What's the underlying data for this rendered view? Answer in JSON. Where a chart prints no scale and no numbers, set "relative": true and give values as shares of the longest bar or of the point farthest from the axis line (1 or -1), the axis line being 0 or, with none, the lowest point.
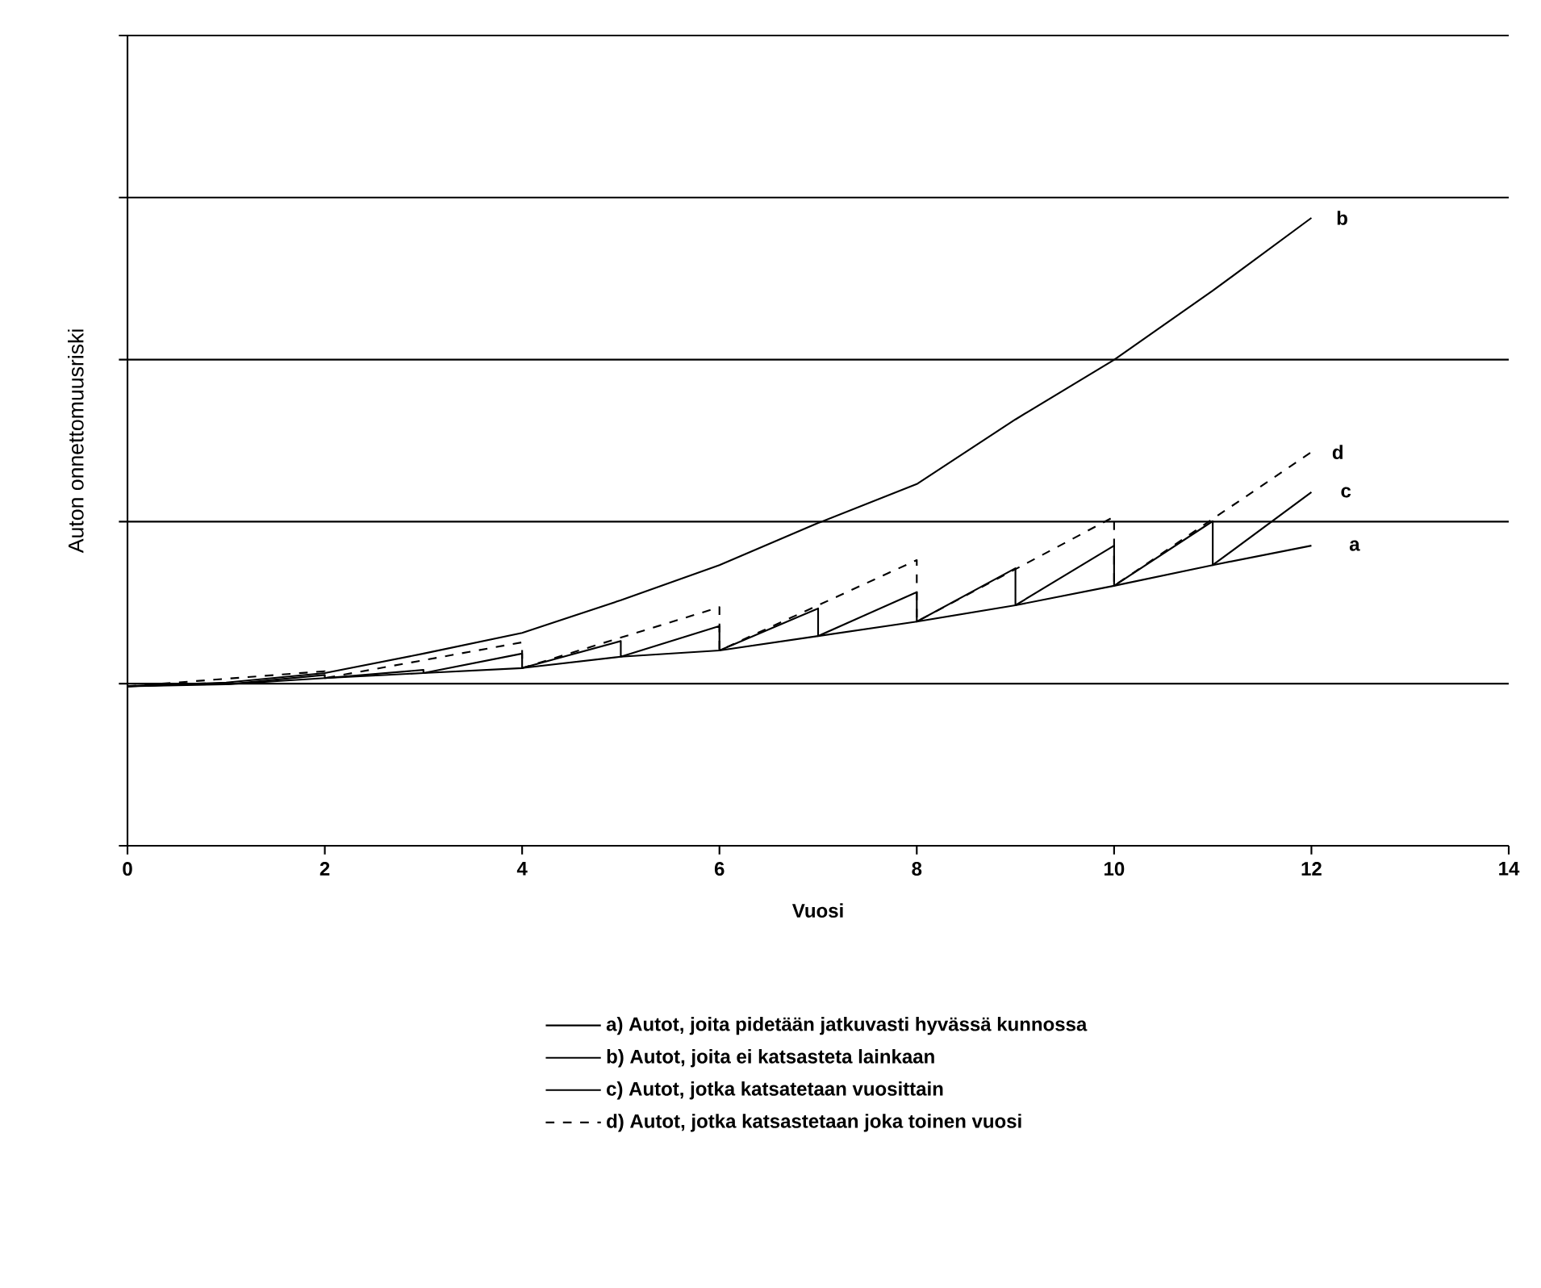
{
  "chart_data": {
    "type": "line",
    "relative": true,
    "xlabel": "Vuosi",
    "ylabel": "Auton onnettomuusriski",
    "xlim": [
      0,
      14
    ],
    "xticks": [
      0,
      2,
      4,
      6,
      8,
      10,
      12,
      14
    ],
    "grid": "y",
    "legend": "bottom",
    "marker": "none",
    "series": [
      {
        "name": "a) Autot, joita pidetään jatkuvasti hyvässä kunnossa",
        "color": "#000000",
        "line_style": "solid",
        "x": [
          0,
          1,
          2,
          3,
          4,
          5,
          6,
          7,
          8,
          9,
          10,
          11,
          12
        ],
        "values": [
          0.254,
          0.257,
          0.267,
          0.275,
          0.283,
          0.301,
          0.311,
          0.334,
          0.357,
          0.383,
          0.414,
          0.447,
          0.478
        ]
      },
      {
        "name": "b) Autot, joita ei katsasteta lainkaan",
        "color": "#000000",
        "line_style": "solid",
        "x": [
          0,
          1,
          2,
          3,
          4,
          5,
          6,
          7,
          8,
          9,
          10,
          11,
          12
        ],
        "values": [
          0.254,
          0.26,
          0.275,
          0.306,
          0.339,
          0.391,
          0.447,
          0.514,
          0.576,
          0.679,
          0.774,
          0.884,
          1.0
        ]
      },
      {
        "name": "c) Autot, jotka katsatetaan vuosittain",
        "color": "#000000",
        "line_style": "solid",
        "x": [
          0,
          1,
          1,
          2,
          2,
          3,
          3,
          4,
          4,
          5,
          5,
          6,
          6,
          7,
          7,
          8,
          8,
          9,
          9,
          10,
          10,
          11,
          11,
          12
        ],
        "values": [
          0.254,
          0.259,
          0.257,
          0.272,
          0.267,
          0.28,
          0.275,
          0.306,
          0.283,
          0.326,
          0.301,
          0.35,
          0.311,
          0.378,
          0.334,
          0.404,
          0.357,
          0.442,
          0.383,
          0.478,
          0.414,
          0.517,
          0.447,
          0.563
        ]
      },
      {
        "name": "d) Autot, jotka katsastetaan joka toinen vuosi",
        "color": "#000000",
        "line_style": "dashed",
        "x": [
          0,
          2,
          2,
          4,
          4,
          6,
          6,
          8,
          8,
          10,
          10,
          12
        ],
        "values": [
          0.254,
          0.278,
          0.267,
          0.324,
          0.283,
          0.38,
          0.311,
          0.455,
          0.357,
          0.524,
          0.414,
          0.627
        ]
      }
    ],
    "annotations": [
      "a",
      "b",
      "c",
      "d"
    ]
  }
}
